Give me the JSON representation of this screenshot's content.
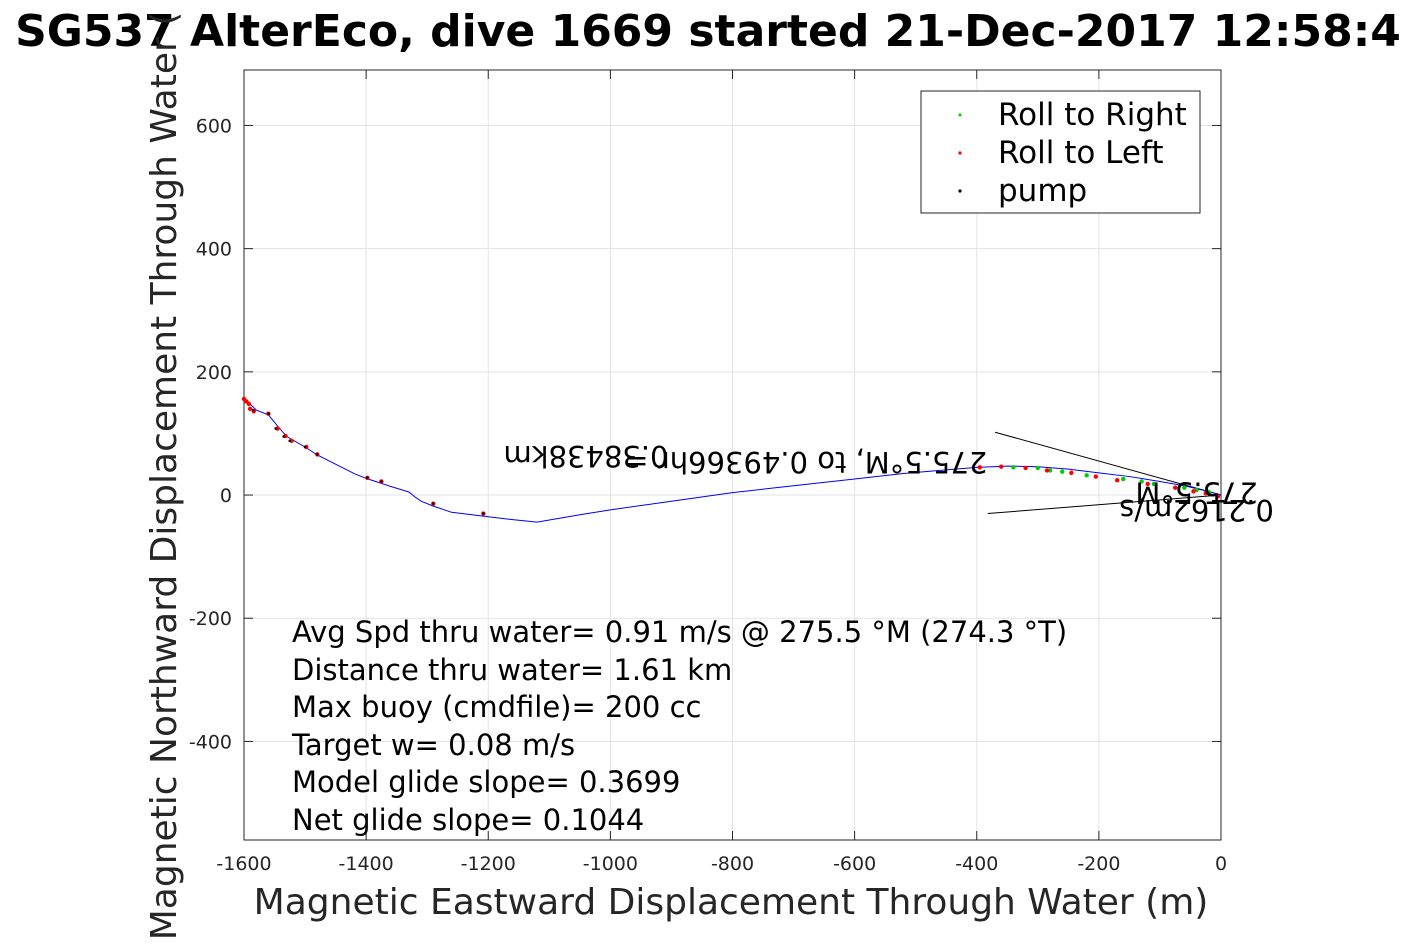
{
  "chart_data": {
    "type": "line",
    "title": "SG537 AlterEco, dive 1669 started 21-Dec-2017 12:58:4",
    "xlabel": "Magnetic Eastward Displacement Through Water (m)",
    "ylabel": "Magnetic Northward Displacement Through Water (",
    "xlim": [
      -1600,
      0
    ],
    "ylim": [
      -560,
      690
    ],
    "xticks": [
      -1600,
      -1400,
      -1200,
      -1000,
      -800,
      -600,
      -400,
      -200,
      0
    ],
    "yticks": [
      -400,
      -200,
      0,
      200,
      400,
      600
    ],
    "grid": true,
    "legend_position": "top-right",
    "colors": {
      "track": "#0000ff",
      "roll_right": "#00cc00",
      "roll_left": "#ff0000",
      "pump": "#000000"
    },
    "legend": [
      {
        "label": "Roll to Right",
        "color": "#00dd00"
      },
      {
        "label": "Roll to Left",
        "color": "#ff0000"
      },
      {
        "label": "pump",
        "color": "#000000"
      }
    ],
    "track": {
      "name": "dive track",
      "x": [
        0,
        -10,
        -30,
        -60,
        -100,
        -150,
        -200,
        -250,
        -300,
        -350,
        -400,
        -460,
        -520,
        -600,
        -700,
        -800,
        -900,
        -1000,
        -1050,
        -1120,
        -1160,
        -1210,
        -1260,
        -1290,
        -1310,
        -1320,
        -1330,
        -1340,
        -1360,
        -1378,
        -1400,
        -1420,
        -1450,
        -1480,
        -1500,
        -1530,
        -1545,
        -1560,
        -1580,
        -1590,
        -1595,
        -1600
      ],
      "y": [
        0,
        3,
        8,
        15,
        22,
        30,
        36,
        42,
        46,
        47,
        45,
        40,
        35,
        26,
        15,
        4,
        -10,
        -24,
        -32,
        -44,
        -40,
        -34,
        -28,
        -18,
        -10,
        -3,
        5,
        8,
        14,
        20,
        27,
        35,
        50,
        65,
        78,
        95,
        112,
        130,
        138,
        148,
        152,
        156
      ]
    },
    "roll_right": {
      "x": [
        -20,
        -60,
        -110,
        -160,
        -220,
        -260,
        -300,
        -340,
        -40,
        -130,
        -280
      ],
      "y": [
        5,
        12,
        18,
        26,
        32,
        38,
        44,
        45,
        8,
        22,
        40
      ]
    },
    "roll_left": {
      "x": [
        -5,
        -25,
        -45,
        -75,
        -120,
        -170,
        -205,
        -245,
        -285,
        -320,
        -360,
        -395,
        -1208,
        -1290,
        -1375,
        -1398,
        -1480,
        -1498,
        -1522,
        -1532,
        -1545,
        -1560,
        -1584,
        -1590,
        -1596,
        -1600,
        -1592
      ],
      "y": [
        -2,
        3,
        6,
        12,
        18,
        24,
        30,
        36,
        40,
        44,
        46,
        45,
        -30,
        -14,
        22,
        28,
        66,
        78,
        88,
        96,
        108,
        132,
        136,
        140,
        152,
        156,
        148
      ]
    },
    "pump": {
      "x": [
        -1208,
        -1290,
        -1375,
        -1398,
        -1480,
        -1500,
        -1525,
        -1535,
        -1548,
        -1560,
        -1585
      ],
      "y": [
        -30,
        -14,
        22,
        28,
        66,
        78,
        88,
        95,
        108,
        132,
        138
      ]
    },
    "current_lines": [
      {
        "x": [
          0,
          -370
        ],
        "y": [
          0,
          102
        ]
      },
      {
        "x": [
          0,
          -382
        ],
        "y": [
          0,
          -30
        ]
      }
    ],
    "annotations": [
      {
        "text": "0.38438km",
        "x": -1040,
        "y": 80,
        "rotate": 180
      },
      {
        "text": "275.5°M, to 0.49366hr =",
        "x": -680,
        "y": 70,
        "rotate": 180
      },
      {
        "text": "0.2162m/s",
        "x": -40,
        "y": -8,
        "rotate": 180
      },
      {
        "text": "275.5°M",
        "x": -40,
        "y": 20,
        "rotate": 180
      }
    ],
    "stats": [
      "Avg Spd thru water=  0.91 m/s @ 275.5 °M (274.3 °T)",
      "Distance thru water=  1.61 km",
      "Max buoy (cmdfile)= 200 cc",
      "Target w= 0.08 m/s",
      "Model glide slope= 0.3699",
      "Net glide slope= 0.1044"
    ]
  }
}
